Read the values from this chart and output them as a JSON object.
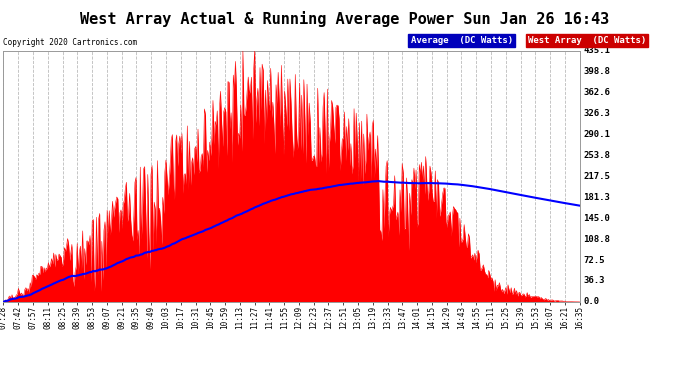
{
  "title": "West Array Actual & Running Average Power Sun Jan 26 16:43",
  "copyright": "Copyright 2020 Cartronics.com",
  "yticks": [
    0.0,
    36.3,
    72.5,
    108.8,
    145.0,
    181.3,
    217.5,
    253.8,
    290.1,
    326.3,
    362.6,
    398.8,
    435.1
  ],
  "ymax": 435.1,
  "ymin": 0.0,
  "legend_labels": [
    "Average  (DC Watts)",
    "West Array  (DC Watts)"
  ],
  "plot_bg_color": "#ffffff",
  "grid_color": "#aaaaaa",
  "bar_color": "#ff0000",
  "avg_color": "#0000ff",
  "xtick_labels": [
    "07:28",
    "07:42",
    "07:57",
    "08:11",
    "08:25",
    "08:39",
    "08:53",
    "09:07",
    "09:21",
    "09:35",
    "09:49",
    "10:03",
    "10:17",
    "10:31",
    "10:45",
    "10:59",
    "11:13",
    "11:27",
    "11:41",
    "11:55",
    "12:09",
    "12:23",
    "12:37",
    "12:51",
    "13:05",
    "13:19",
    "13:33",
    "13:47",
    "14:01",
    "14:15",
    "14:29",
    "14:43",
    "14:55",
    "15:11",
    "15:25",
    "15:39",
    "15:53",
    "16:07",
    "16:21",
    "16:35"
  ],
  "num_points": 540,
  "figwidth": 6.9,
  "figheight": 3.75,
  "dpi": 100
}
